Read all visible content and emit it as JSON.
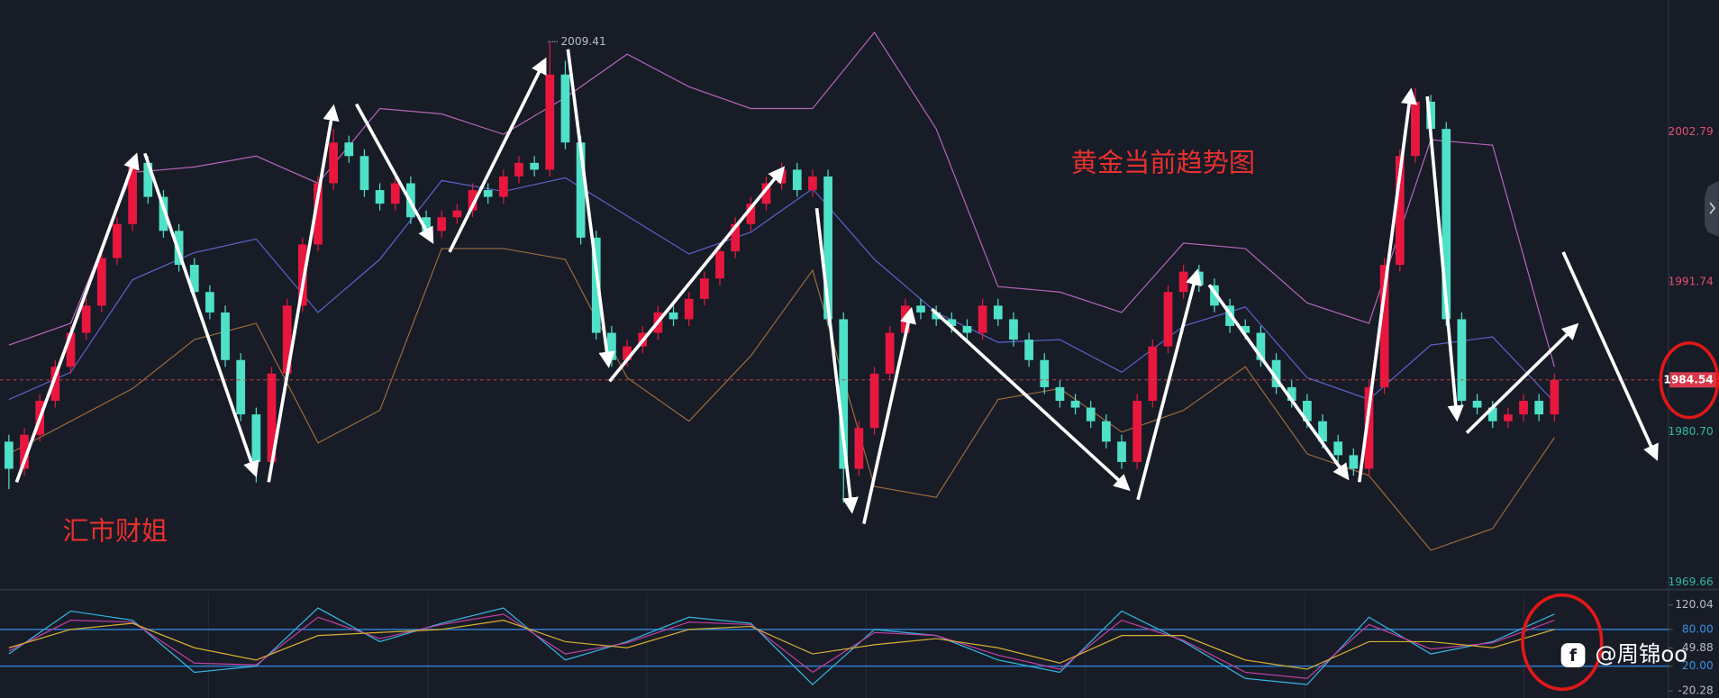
{
  "chart_data": {
    "type": "candlestick",
    "title": "黄金当前趋势图",
    "annotations": [
      "汇市财姐"
    ],
    "watermark": "@周锦oo",
    "ylim": [
      1969.2,
      2012.48
    ],
    "yticks": [
      2002.79,
      1991.74,
      {
        "value": 1980.7,
        "label": "1980.70"
      },
      1969.66
    ],
    "up_color": "#e8173e",
    "down_color": "#4fe0c8",
    "candles": [
      [
        1980,
        1980.5,
        1976.5,
        1978
      ],
      [
        1978,
        1981,
        1977.5,
        1980.5
      ],
      [
        1980.5,
        1983.5,
        1980,
        1983
      ],
      [
        1983,
        1986,
        1982.5,
        1985.5
      ],
      [
        1985.5,
        1988.5,
        1985,
        1988
      ],
      [
        1988,
        1990.5,
        1987.5,
        1990
      ],
      [
        1990,
        1994,
        1989.5,
        1993.5
      ],
      [
        1993.5,
        1996.5,
        1993,
        1996
      ],
      [
        1996,
        2001,
        1995.5,
        2000.5
      ],
      [
        2000.5,
        2001,
        1997.5,
        1998
      ],
      [
        1998,
        1998.5,
        1995,
        1995.5
      ],
      [
        1995.5,
        1996,
        1992.5,
        1993
      ],
      [
        1993,
        1993.5,
        1990.5,
        1991
      ],
      [
        1991,
        1991.5,
        1989,
        1989.5
      ],
      [
        1989.5,
        1990,
        1985.5,
        1986
      ],
      [
        1986,
        1986.5,
        1981.5,
        1982
      ],
      [
        1982,
        1982.5,
        1977,
        1978.5
      ],
      [
        1978.5,
        1985.5,
        1978,
        1985
      ],
      [
        1985,
        1990.5,
        1984.5,
        1990
      ],
      [
        1990,
        1995,
        1989.5,
        1994.5
      ],
      [
        1994.5,
        1999.5,
        1994,
        1999
      ],
      [
        1999,
        2003,
        1998.5,
        2002
      ],
      [
        2002,
        2002.5,
        2000.5,
        2001
      ],
      [
        2001,
        2001.5,
        1998,
        1998.5
      ],
      [
        1998.5,
        1999,
        1997,
        1997.5
      ],
      [
        1997.5,
        1999.5,
        1997,
        1999
      ],
      [
        1999,
        1999.5,
        1996,
        1996.5
      ],
      [
        1996.5,
        1997,
        1995,
        1995.5
      ],
      [
        1995.5,
        1997,
        1995,
        1996.5
      ],
      [
        1996.5,
        1997.5,
        1996,
        1997
      ],
      [
        1997,
        1999,
        1996.5,
        1998.5
      ],
      [
        1998.5,
        1999,
        1997.5,
        1998
      ],
      [
        1998,
        2000,
        1997.5,
        1999.5
      ],
      [
        1999.5,
        2001,
        1999,
        2000.5
      ],
      [
        2000.5,
        2001,
        1999.5,
        2000
      ],
      [
        2000,
        2009.41,
        1999.5,
        2007
      ],
      [
        2007,
        2008,
        2001.5,
        2002
      ],
      [
        2002,
        2002.5,
        1994.5,
        1995
      ],
      [
        1995,
        1995.5,
        1987.5,
        1988
      ],
      [
        1988,
        1988.5,
        1985.5,
        1986
      ],
      [
        1986,
        1987.5,
        1985.5,
        1987
      ],
      [
        1987,
        1988.5,
        1986.5,
        1988
      ],
      [
        1988,
        1990,
        1987.5,
        1989.5
      ],
      [
        1989.5,
        1990,
        1988.5,
        1989
      ],
      [
        1989,
        1991,
        1988.5,
        1990.5
      ],
      [
        1990.5,
        1992.5,
        1990,
        1992
      ],
      [
        1992,
        1994.5,
        1991.5,
        1994
      ],
      [
        1994,
        1996.5,
        1993.5,
        1996
      ],
      [
        1996,
        1998,
        1995.5,
        1997.5
      ],
      [
        1997.5,
        1999.5,
        1997,
        1999
      ],
      [
        1999,
        2000.5,
        1998.5,
        2000
      ],
      [
        2000,
        2000.5,
        1998,
        1998.5
      ],
      [
        1998.5,
        2000,
        1998,
        1999.5
      ],
      [
        1999.5,
        2000,
        1988.5,
        1989
      ],
      [
        1989,
        1989.5,
        1975.5,
        1978
      ],
      [
        1978,
        1981.5,
        1977.5,
        1981
      ],
      [
        1981,
        1985.5,
        1980.5,
        1985
      ],
      [
        1985,
        1988.5,
        1984.5,
        1988
      ],
      [
        1988,
        1990.5,
        1987.5,
        1990
      ],
      [
        1990,
        1990.5,
        1989,
        1989.5
      ],
      [
        1989.5,
        1990,
        1988.5,
        1989
      ],
      [
        1989,
        1989.5,
        1988,
        1988.5
      ],
      [
        1988.5,
        1989,
        1987.5,
        1988
      ],
      [
        1988,
        1990.5,
        1987.5,
        1990
      ],
      [
        1990,
        1990.5,
        1988.5,
        1989
      ],
      [
        1989,
        1989.5,
        1987,
        1987.5
      ],
      [
        1987.5,
        1988,
        1985.5,
        1986
      ],
      [
        1986,
        1986.5,
        1983.5,
        1984
      ],
      [
        1984,
        1984.5,
        1982.5,
        1983
      ],
      [
        1983,
        1983.5,
        1982,
        1982.5
      ],
      [
        1982.5,
        1983,
        1981,
        1981.5
      ],
      [
        1981.5,
        1982,
        1979.5,
        1980
      ],
      [
        1980,
        1980.5,
        1978,
        1978.5
      ],
      [
        1978.5,
        1983.5,
        1978,
        1983
      ],
      [
        1983,
        1987.5,
        1982.5,
        1987
      ],
      [
        1987,
        1991.5,
        1986.5,
        1991
      ],
      [
        1991,
        1993,
        1990.5,
        1992.5
      ],
      [
        1992.5,
        1993,
        1991,
        1991.5
      ],
      [
        1991.5,
        1992,
        1989.5,
        1990
      ],
      [
        1990,
        1990.5,
        1988,
        1988.5
      ],
      [
        1988.5,
        1989,
        1987.5,
        1988
      ],
      [
        1988,
        1988.5,
        1985.5,
        1986
      ],
      [
        1986,
        1986.5,
        1983.5,
        1984
      ],
      [
        1984,
        1984.5,
        1982.5,
        1983
      ],
      [
        1983,
        1983.5,
        1981,
        1981.5
      ],
      [
        1981.5,
        1982,
        1979.5,
        1980
      ],
      [
        1980,
        1980.5,
        1978.5,
        1979
      ],
      [
        1979,
        1979.5,
        1977.5,
        1978
      ],
      [
        1978,
        1984.5,
        1977.5,
        1984
      ],
      [
        1984,
        1993.5,
        1983.5,
        1993
      ],
      [
        1993,
        2001.5,
        1992.5,
        2001
      ],
      [
        2001,
        2006,
        2000.5,
        2005
      ],
      [
        2005,
        2005.5,
        2002.5,
        2003
      ],
      [
        2003,
        2003.5,
        1988.5,
        1989
      ],
      [
        1989,
        1989.5,
        1982.5,
        1983
      ],
      [
        1983,
        1983.5,
        1982,
        1982.5
      ],
      [
        1982.5,
        1983,
        1981,
        1981.5
      ],
      [
        1981.5,
        1982.5,
        1981,
        1982
      ],
      [
        1982,
        1983.5,
        1981.5,
        1983
      ],
      [
        1983,
        1983.5,
        1981.5,
        1982
      ],
      [
        1982,
        1985,
        1981.5,
        1984.54
      ]
    ],
    "band_x": [
      0,
      4,
      8,
      12,
      16,
      20,
      24,
      28,
      32,
      36,
      40,
      44,
      48,
      52,
      56,
      60,
      64,
      68,
      72,
      76,
      80,
      84,
      88,
      92,
      96,
      100
    ],
    "bands": [
      {
        "color": "#b565b5",
        "values": [
          1987.1,
          1988.7,
          1999.8,
          2000.2,
          2001,
          1999,
          2004.5,
          2004.1,
          2002.6,
          2005.3,
          2008.5,
          2006.1,
          2004.5,
          2004.5,
          2010.1,
          2003,
          1991.4,
          1991,
          1989.5,
          1994.6,
          1994.2,
          1990.2,
          1988.7,
          2002.2,
          2001.8,
          1985.5
        ]
      },
      {
        "color": "#5a63c8",
        "values": [
          1983.1,
          1985.1,
          1991.9,
          1993.9,
          1994.9,
          1989.5,
          1993.4,
          1999.2,
          1998.4,
          1999.4,
          1996.6,
          1993.8,
          1995.4,
          1998.6,
          1993.4,
          1989.5,
          1987.3,
          1987.5,
          1985.1,
          1988.5,
          1989.9,
          1984.7,
          1983.1,
          1987.1,
          1987.7,
          1982.9
        ]
      },
      {
        "color": "#9a6a3c",
        "values": [
          1979.1,
          1981.5,
          1983.9,
          1987.5,
          1988.7,
          1979.9,
          1982.3,
          1994.2,
          1994.2,
          1993.4,
          1984.7,
          1981.5,
          1986.3,
          1992.6,
          1976.7,
          1975.9,
          1983.1,
          1983.9,
          1980.7,
          1982.3,
          1985.5,
          1979.1,
          1977.5,
          1972,
          1973.6,
          1980.3
        ]
      }
    ],
    "oscillator": {
      "ylim": [
        -32,
        138
      ],
      "yticks": [
        120.04,
        {
          "value": 80,
          "label": "80.00"
        },
        49.88,
        {
          "value": 20,
          "label": "20.00"
        },
        -20.28
      ],
      "levels": [
        80,
        20
      ],
      "level_color": "#2f7fd0",
      "lines": [
        {
          "color": "#35b7e0",
          "values": [
            40,
            110,
            95,
            10,
            20,
            115,
            60,
            90,
            115,
            30,
            60,
            100,
            90,
            -10,
            80,
            70,
            30,
            10,
            110,
            60,
            0,
            -10,
            100,
            40,
            60,
            105
          ]
        },
        {
          "color": "#c040a0",
          "values": [
            45,
            95,
            92,
            25,
            22,
            100,
            65,
            88,
            105,
            40,
            58,
            92,
            88,
            10,
            75,
            70,
            38,
            15,
            95,
            62,
            10,
            0,
            88,
            48,
            58,
            95
          ]
        },
        {
          "color": "#d8b030",
          "values": [
            50,
            80,
            90,
            50,
            30,
            70,
            75,
            80,
            95,
            60,
            50,
            80,
            85,
            40,
            55,
            65,
            50,
            25,
            70,
            70,
            30,
            15,
            60,
            60,
            50,
            80
          ]
        }
      ]
    }
  }
}
